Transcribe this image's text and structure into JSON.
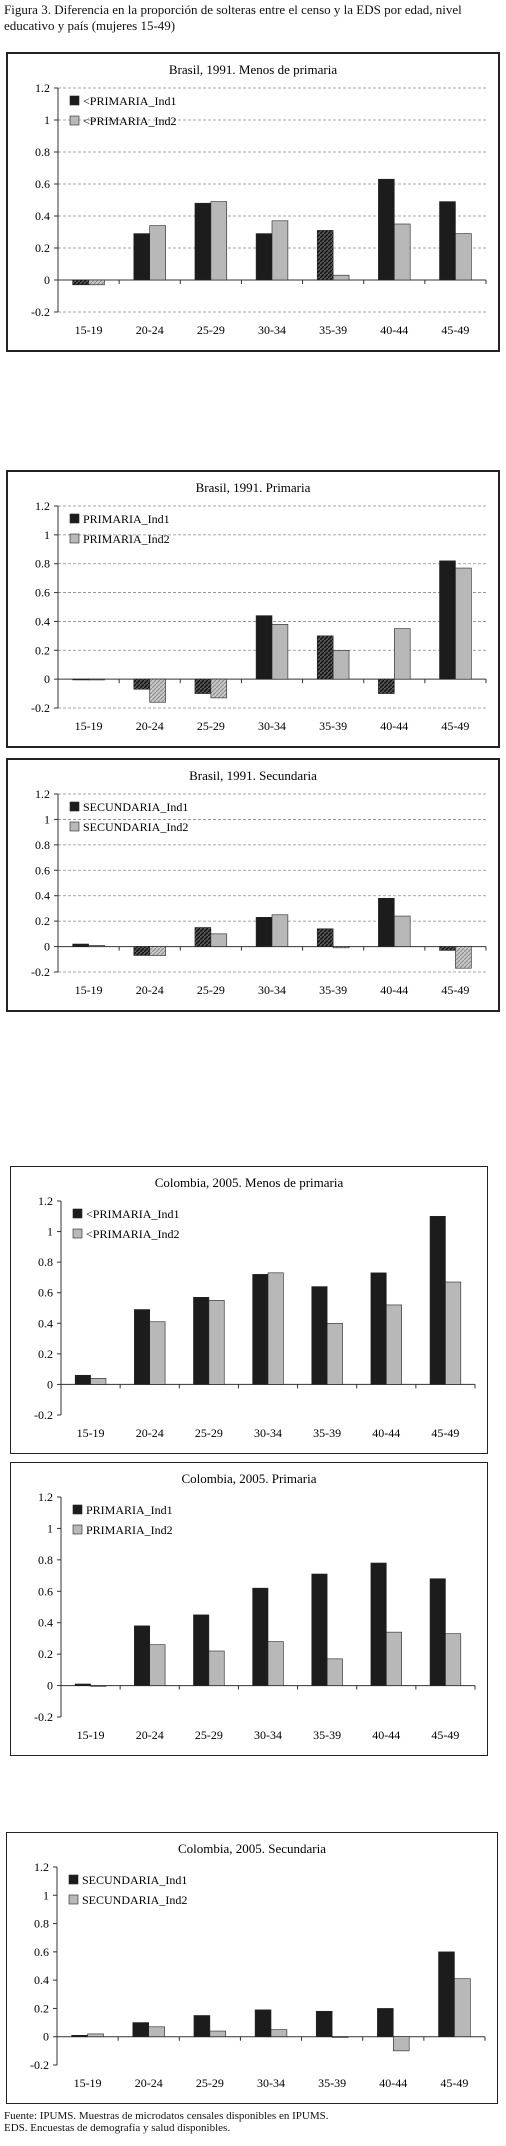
{
  "figure_caption": "Figura 3. Diferencia en la proporción de solteras entre el censo y la EDS por edad, nivel educativo y país (mujeres 15-49)",
  "source_note": "Fuente: IPUMS. Muestras de microdatos censales disponibles en IPUMS.",
  "eds_note": "EDS. Encuestas de demografía y salud disponibles.",
  "colors": {
    "ind1": "#1c1c1c",
    "ind2": "#b8b8b8",
    "grid": "#8a8a8a",
    "axis": "#333333"
  },
  "chart_data": [
    {
      "type": "bar",
      "title": "Brasil, 1991. Menos de primaria",
      "categories": [
        "15-19",
        "20-24",
        "25-29",
        "30-34",
        "35-39",
        "40-44",
        "45-49"
      ],
      "ylim": [
        -0.2,
        1.2
      ],
      "yticks": [
        "-0.2",
        "0",
        "0.2",
        "0.4",
        "0.6",
        "0.8",
        "1",
        "1.2"
      ],
      "grid": true,
      "legend_position": "top-left",
      "series": [
        {
          "name": "<PRIMARIA_Ind1",
          "values": [
            -0.03,
            0.29,
            0.48,
            0.29,
            0.31,
            0.63,
            0.49
          ]
        },
        {
          "name": "<PRIMARIA_Ind2",
          "values": [
            -0.03,
            0.34,
            0.49,
            0.37,
            0.03,
            0.35,
            0.29
          ]
        }
      ]
    },
    {
      "type": "bar",
      "title": "Brasil, 1991. Primaria",
      "categories": [
        "15-19",
        "20-24",
        "25-29",
        "30-34",
        "35-39",
        "40-44",
        "45-49"
      ],
      "ylim": [
        -0.2,
        1.2
      ],
      "yticks": [
        "-0.2",
        "0",
        "0.2",
        "0.4",
        "0.6",
        "0.8",
        "1",
        "1.2"
      ],
      "grid": true,
      "legend_position": "top-left",
      "series": [
        {
          "name": "PRIMARIA_Ind1",
          "values": [
            0.0,
            -0.07,
            -0.1,
            0.44,
            0.3,
            -0.1,
            0.82
          ]
        },
        {
          "name": "PRIMARIA_Ind2",
          "values": [
            0.0,
            -0.16,
            -0.13,
            0.38,
            0.2,
            0.35,
            0.77
          ]
        }
      ]
    },
    {
      "type": "bar",
      "title": "Brasil, 1991. Secundaria",
      "categories": [
        "15-19",
        "20-24",
        "25-29",
        "30-34",
        "35-39",
        "40-44",
        "45-49"
      ],
      "ylim": [
        -0.2,
        1.2
      ],
      "yticks": [
        "-0.2",
        "0",
        "0.2",
        "0.4",
        "0.6",
        "0.8",
        "1",
        "1.2"
      ],
      "grid": true,
      "legend_position": "top-left",
      "series": [
        {
          "name": "SECUNDARIA_Ind1",
          "values": [
            0.02,
            -0.07,
            0.15,
            0.23,
            0.14,
            0.38,
            -0.03
          ]
        },
        {
          "name": "SECUNDARIA_Ind2",
          "values": [
            0.01,
            -0.07,
            0.1,
            0.25,
            -0.01,
            0.24,
            -0.17
          ]
        }
      ]
    },
    {
      "type": "bar",
      "title": "Colombia, 2005. Menos de primaria",
      "categories": [
        "15-19",
        "20-24",
        "25-29",
        "30-34",
        "35-39",
        "40-44",
        "45-49"
      ],
      "ylim": [
        -0.2,
        1.2
      ],
      "yticks": [
        "-0.2",
        "0",
        "0.2",
        "0.4",
        "0.6",
        "0.8",
        "1",
        "1.2"
      ],
      "grid": false,
      "legend_position": "top-left",
      "series": [
        {
          "name": "<PRIMARIA_Ind1",
          "values": [
            0.06,
            0.49,
            0.57,
            0.72,
            0.64,
            0.73,
            1.1
          ]
        },
        {
          "name": "<PRIMARIA_Ind2",
          "values": [
            0.04,
            0.41,
            0.55,
            0.73,
            0.4,
            0.52,
            0.67
          ]
        }
      ]
    },
    {
      "type": "bar",
      "title": "Colombia, 2005. Primaria",
      "categories": [
        "15-19",
        "20-24",
        "25-29",
        "30-34",
        "35-39",
        "40-44",
        "45-49"
      ],
      "ylim": [
        -0.2,
        1.2
      ],
      "yticks": [
        "-0.2",
        "0",
        "0.2",
        "0.4",
        "0.6",
        "0.8",
        "1",
        "1.2"
      ],
      "grid": false,
      "legend_position": "top-left",
      "series": [
        {
          "name": "PRIMARIA_Ind1",
          "values": [
            0.01,
            0.38,
            0.45,
            0.62,
            0.71,
            0.78,
            0.68
          ]
        },
        {
          "name": "PRIMARIA_Ind2",
          "values": [
            0.0,
            0.26,
            0.22,
            0.28,
            0.17,
            0.34,
            0.33
          ]
        }
      ]
    },
    {
      "type": "bar",
      "title": "Colombia, 2005. Secundaria",
      "categories": [
        "15-19",
        "20-24",
        "25-29",
        "30-34",
        "35-39",
        "40-44",
        "45-49"
      ],
      "ylim": [
        -0.2,
        1.2
      ],
      "yticks": [
        "-0.2",
        "0",
        "0.2",
        "0.4",
        "0.6",
        "0.8",
        "1",
        "1.2"
      ],
      "grid": false,
      "legend_position": "top-left",
      "series": [
        {
          "name": "SECUNDARIA_Ind1",
          "values": [
            0.01,
            0.1,
            0.15,
            0.19,
            0.18,
            0.2,
            0.6
          ]
        },
        {
          "name": "SECUNDARIA_Ind2",
          "values": [
            0.02,
            0.07,
            0.04,
            0.05,
            0.0,
            -0.1,
            0.41
          ]
        }
      ]
    }
  ]
}
